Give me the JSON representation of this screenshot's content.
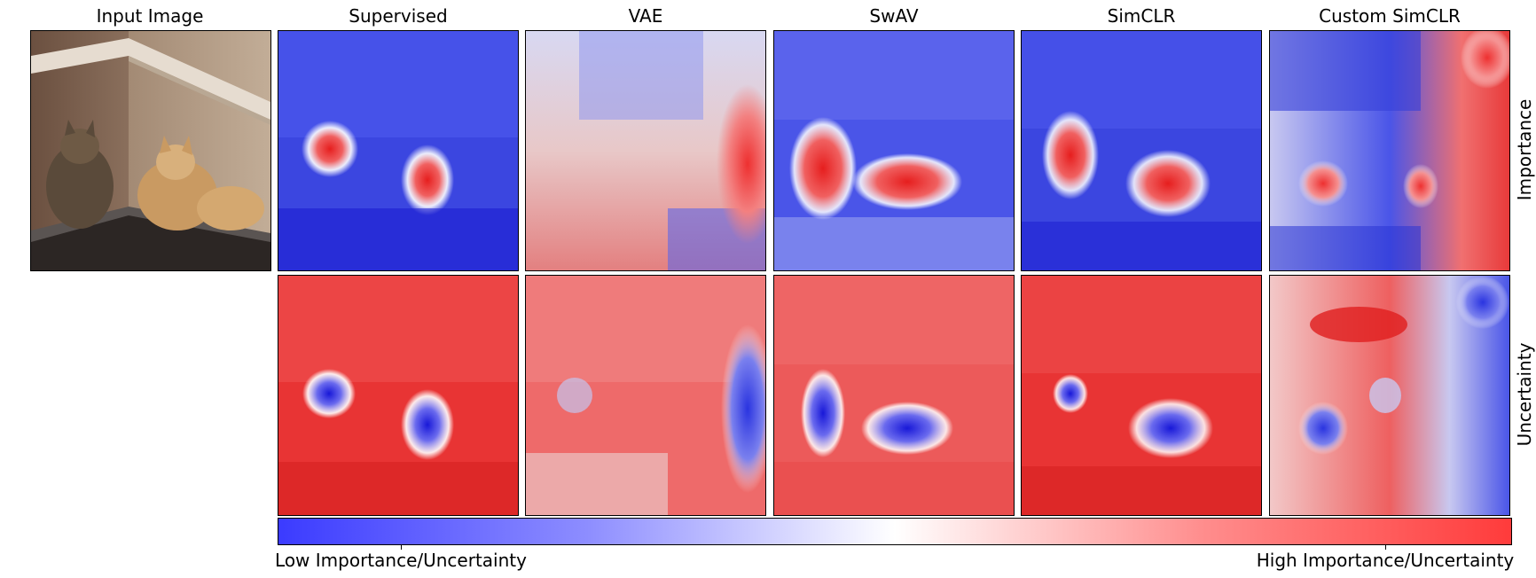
{
  "column_titles": [
    "Input Image",
    "Supervised",
    "VAE",
    "SwAV",
    "SimCLR",
    "Custom SimCLR"
  ],
  "row_labels": {
    "importance": "Importance",
    "uncertainty": "Uncertainty"
  },
  "colorbar": {
    "low_label": "Low Importance/Uncertainty",
    "high_label": "High Importance/Uncertainty",
    "low_color": "#3b3bff",
    "mid_color": "#ffffff",
    "high_color": "#ff3b3b"
  },
  "input_image": {
    "description_icon": "two-cats-photo-icon"
  }
}
